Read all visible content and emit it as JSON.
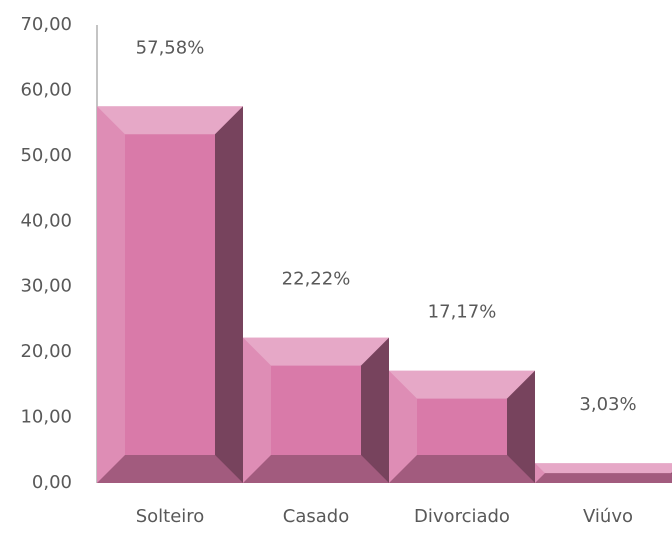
{
  "chart_data": {
    "type": "bar",
    "categories": [
      "Solteiro",
      "Casado",
      "Divorciado",
      "Viúvo"
    ],
    "values": [
      57.58,
      22.22,
      17.17,
      3.03
    ],
    "value_labels": [
      "57,58%",
      "22,22%",
      "17,17%",
      "3,03%"
    ],
    "color": "#d97aa9",
    "ylim": [
      0,
      70
    ],
    "yticks": [
      {
        "value": 0,
        "label": "0,00"
      },
      {
        "value": 10,
        "label": "10,00"
      },
      {
        "value": 20,
        "label": "20,00"
      },
      {
        "value": 30,
        "label": "30,00"
      },
      {
        "value": 40,
        "label": "40,00"
      },
      {
        "value": 50,
        "label": "50,00"
      },
      {
        "value": 60,
        "label": "60,00"
      },
      {
        "value": 70,
        "label": "70,00"
      }
    ],
    "grid": false
  }
}
